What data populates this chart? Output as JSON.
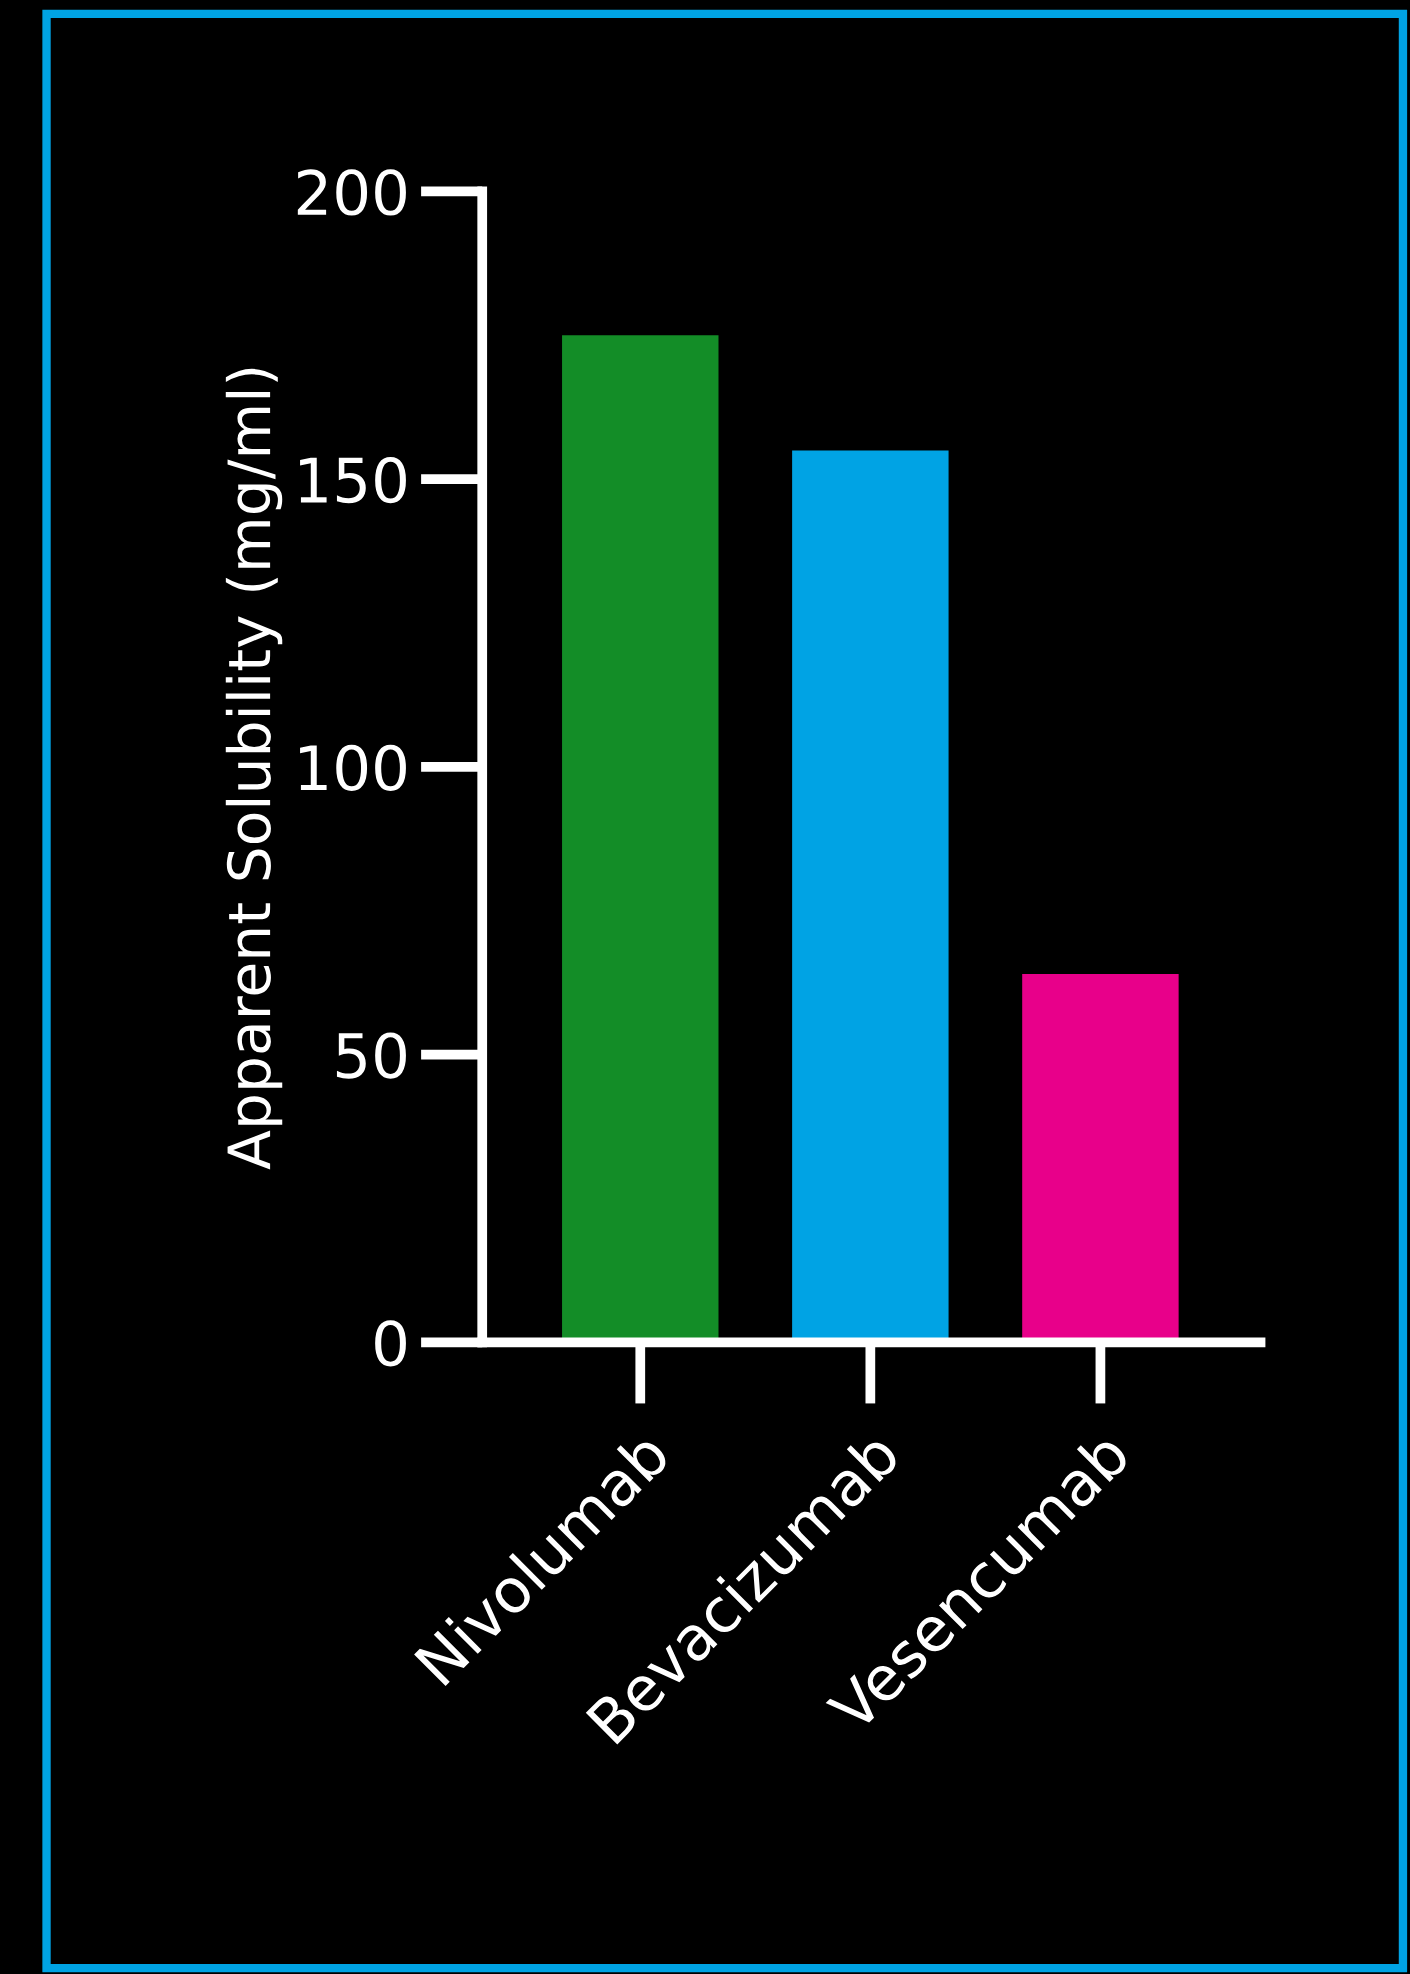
{
  "chart_data": {
    "type": "bar",
    "ylabel": "Apparent Solubility (mg/ml)",
    "categories": [
      "Nivolumab",
      "Bevacizumab",
      "Vesencumab"
    ],
    "values": [
      175,
      155,
      64
    ],
    "colors": [
      "#138d27",
      "#00a3e4",
      "#e8008a"
    ],
    "ylim": [
      0,
      200
    ],
    "yticks": [
      0,
      50,
      100,
      150,
      200
    ],
    "grid": false,
    "legend": false
  }
}
